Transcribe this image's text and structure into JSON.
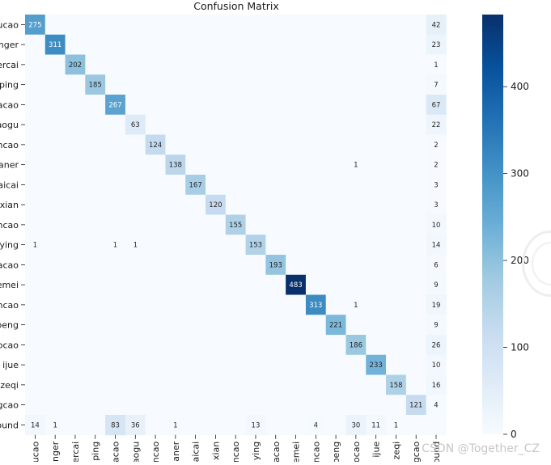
{
  "chart_data": {
    "type": "heatmap",
    "title": "Confusion Matrix",
    "row_labels": [
      "ucao",
      "nger",
      "ercai",
      "ping",
      "acao",
      "aogu",
      "ncao",
      "aner",
      "aicai",
      "xian",
      "ncao",
      "ying",
      "acao",
      "emei",
      "ncao",
      "peng",
      "ocao",
      "ijue",
      "zeqi",
      "gcao",
      "ound"
    ],
    "col_labels": [
      "ucao",
      "nger",
      "ercai",
      "ping",
      "acao",
      "aogu",
      "ncao",
      "aner",
      "aicai",
      "xian",
      "ncao",
      "ying",
      "acao",
      "emei",
      "ncao",
      "peng",
      "ocao",
      "ijue",
      "zeqi",
      "gcao",
      "ound"
    ],
    "matrix": [
      [
        275,
        0,
        0,
        0,
        0,
        0,
        0,
        0,
        0,
        0,
        0,
        0,
        0,
        0,
        0,
        0,
        0,
        0,
        0,
        0,
        42
      ],
      [
        0,
        311,
        0,
        0,
        0,
        0,
        0,
        0,
        0,
        0,
        0,
        0,
        0,
        0,
        0,
        0,
        0,
        0,
        0,
        0,
        23
      ],
      [
        0,
        0,
        202,
        0,
        0,
        0,
        0,
        0,
        0,
        0,
        0,
        0,
        0,
        0,
        0,
        0,
        0,
        0,
        0,
        0,
        1
      ],
      [
        0,
        0,
        0,
        185,
        0,
        0,
        0,
        0,
        0,
        0,
        0,
        0,
        0,
        0,
        0,
        0,
        0,
        0,
        0,
        0,
        7
      ],
      [
        0,
        0,
        0,
        0,
        267,
        0,
        0,
        0,
        0,
        0,
        0,
        0,
        0,
        0,
        0,
        0,
        0,
        0,
        0,
        0,
        67
      ],
      [
        0,
        0,
        0,
        0,
        0,
        63,
        0,
        0,
        0,
        0,
        0,
        0,
        0,
        0,
        0,
        0,
        0,
        0,
        0,
        0,
        22
      ],
      [
        0,
        0,
        0,
        0,
        0,
        0,
        124,
        0,
        0,
        0,
        0,
        0,
        0,
        0,
        0,
        0,
        0,
        0,
        0,
        0,
        2
      ],
      [
        0,
        0,
        0,
        0,
        0,
        0,
        0,
        138,
        0,
        0,
        0,
        0,
        0,
        0,
        0,
        0,
        1,
        0,
        0,
        0,
        2
      ],
      [
        0,
        0,
        0,
        0,
        0,
        0,
        0,
        0,
        167,
        0,
        0,
        0,
        0,
        0,
        0,
        0,
        0,
        0,
        0,
        0,
        3
      ],
      [
        0,
        0,
        0,
        0,
        0,
        0,
        0,
        0,
        0,
        120,
        0,
        0,
        0,
        0,
        0,
        0,
        0,
        0,
        0,
        0,
        3
      ],
      [
        0,
        0,
        0,
        0,
        0,
        0,
        0,
        0,
        0,
        0,
        155,
        0,
        0,
        0,
        0,
        0,
        0,
        0,
        0,
        0,
        10
      ],
      [
        1,
        0,
        0,
        0,
        1,
        1,
        0,
        0,
        0,
        0,
        0,
        153,
        0,
        0,
        0,
        0,
        0,
        0,
        0,
        0,
        14
      ],
      [
        0,
        0,
        0,
        0,
        0,
        0,
        0,
        0,
        0,
        0,
        0,
        0,
        193,
        0,
        0,
        0,
        0,
        0,
        0,
        0,
        6
      ],
      [
        0,
        0,
        0,
        0,
        0,
        0,
        0,
        0,
        0,
        0,
        0,
        0,
        0,
        483,
        0,
        0,
        0,
        0,
        0,
        0,
        9
      ],
      [
        0,
        0,
        0,
        0,
        0,
        0,
        0,
        0,
        0,
        0,
        0,
        0,
        0,
        0,
        313,
        0,
        1,
        0,
        0,
        0,
        19
      ],
      [
        0,
        0,
        0,
        0,
        0,
        0,
        0,
        0,
        0,
        0,
        0,
        0,
        0,
        0,
        0,
        221,
        0,
        0,
        0,
        0,
        9
      ],
      [
        0,
        0,
        0,
        0,
        0,
        0,
        0,
        0,
        0,
        0,
        0,
        0,
        0,
        0,
        0,
        0,
        186,
        0,
        0,
        0,
        26
      ],
      [
        0,
        0,
        0,
        0,
        0,
        0,
        0,
        0,
        0,
        0,
        0,
        0,
        0,
        0,
        0,
        0,
        0,
        233,
        0,
        0,
        10
      ],
      [
        0,
        0,
        0,
        0,
        0,
        0,
        0,
        0,
        0,
        0,
        0,
        0,
        0,
        0,
        0,
        0,
        0,
        0,
        158,
        0,
        16
      ],
      [
        0,
        0,
        0,
        0,
        0,
        0,
        0,
        0,
        0,
        0,
        0,
        0,
        0,
        0,
        0,
        0,
        0,
        0,
        0,
        121,
        4
      ],
      [
        14,
        1,
        0,
        0,
        83,
        36,
        0,
        1,
        0,
        0,
        0,
        13,
        0,
        0,
        4,
        0,
        30,
        11,
        1,
        0,
        0
      ]
    ],
    "colorbar": {
      "min": 0,
      "max": 483,
      "ticks": [
        0,
        100,
        200,
        300,
        400
      ],
      "colormap": [
        "#f7fbff",
        "#deebf7",
        "#c6dbef",
        "#9ecae1",
        "#6baed6",
        "#4292c6",
        "#2171b5",
        "#08519c",
        "#08306b"
      ]
    },
    "annotation_dark_text": "#262626",
    "annotation_light_text": "#ffffff"
  },
  "watermark": "CSDN @Together_CZ"
}
